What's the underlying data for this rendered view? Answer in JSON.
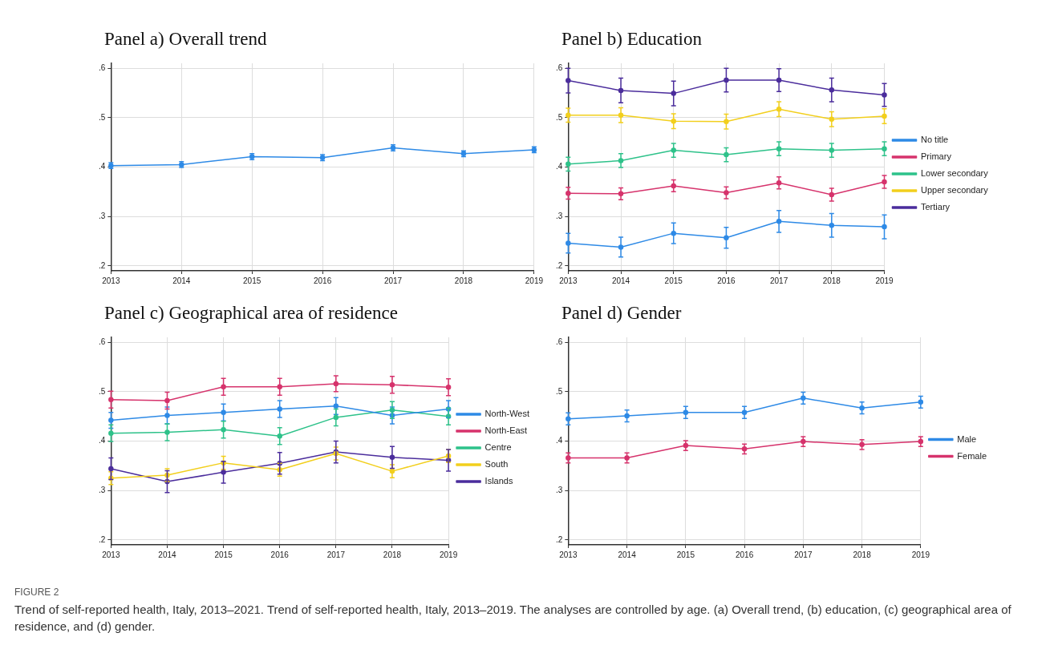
{
  "chart_data": [
    {
      "type": "line",
      "title": "Panel a) Overall trend",
      "categories": [
        "2013",
        "2014",
        "2015",
        "2016",
        "2017",
        "2018",
        "2019"
      ],
      "ylim": [
        0.19,
        0.61
      ],
      "yticks": [
        {
          "value": 0.2,
          "label": ".2"
        },
        {
          "value": 0.3,
          "label": ".3"
        },
        {
          "value": 0.4,
          "label": ".4"
        },
        {
          "value": 0.5,
          "label": ".5"
        },
        {
          "value": 0.6,
          "label": ".6"
        }
      ],
      "grid": true,
      "marker": "circle",
      "line_style": "solid",
      "series": [
        {
          "color": "#2e8ae6",
          "values": [
            0.403,
            0.405,
            0.421,
            0.419,
            0.439,
            0.427,
            0.435
          ],
          "errors": [
            0.006,
            0.006,
            0.006,
            0.006,
            0.006,
            0.006,
            0.006
          ]
        }
      ]
    },
    {
      "type": "line",
      "title": "Panel b) Education",
      "categories": [
        "2013",
        "2014",
        "2015",
        "2016",
        "2017",
        "2018",
        "2019"
      ],
      "ylim": [
        0.19,
        0.61
      ],
      "yticks": [
        {
          "value": 0.2,
          "label": ".2"
        },
        {
          "value": 0.3,
          "label": ".3"
        },
        {
          "value": 0.4,
          "label": ".4"
        },
        {
          "value": 0.5,
          "label": ".5"
        },
        {
          "value": 0.6,
          "label": ".6"
        }
      ],
      "grid": true,
      "marker": "circle",
      "line_style": "solid",
      "legend": "right",
      "series": [
        {
          "name": "No title",
          "color": "#2e8ae6",
          "values": [
            0.246,
            0.238,
            0.266,
            0.257,
            0.29,
            0.282,
            0.279
          ],
          "errors": [
            0.02,
            0.02,
            0.021,
            0.021,
            0.022,
            0.024,
            0.024
          ]
        },
        {
          "name": "Primary",
          "color": "#d6336c",
          "values": [
            0.347,
            0.346,
            0.362,
            0.348,
            0.368,
            0.344,
            0.37
          ],
          "errors": [
            0.012,
            0.012,
            0.012,
            0.012,
            0.012,
            0.013,
            0.013
          ]
        },
        {
          "name": "Lower secondary",
          "color": "#2ec28a",
          "values": [
            0.406,
            0.413,
            0.434,
            0.425,
            0.437,
            0.434,
            0.437
          ],
          "errors": [
            0.014,
            0.014,
            0.014,
            0.014,
            0.014,
            0.014,
            0.014
          ]
        },
        {
          "name": "Upper secondary",
          "color": "#f2cf1d",
          "values": [
            0.505,
            0.505,
            0.493,
            0.492,
            0.517,
            0.497,
            0.503
          ],
          "errors": [
            0.014,
            0.015,
            0.015,
            0.015,
            0.015,
            0.015,
            0.015
          ]
        },
        {
          "name": "Tertiary",
          "color": "#4b2d9c",
          "values": [
            0.575,
            0.555,
            0.549,
            0.576,
            0.576,
            0.556,
            0.546
          ],
          "errors": [
            0.025,
            0.025,
            0.025,
            0.024,
            0.023,
            0.024,
            0.023
          ]
        }
      ]
    },
    {
      "type": "line",
      "title": "Panel c) Geographical area of residence",
      "categories": [
        "2013",
        "2014",
        "2015",
        "2016",
        "2017",
        "2018",
        "2019"
      ],
      "ylim": [
        0.19,
        0.61
      ],
      "yticks": [
        {
          "value": 0.2,
          "label": ".2"
        },
        {
          "value": 0.3,
          "label": ".3"
        },
        {
          "value": 0.4,
          "label": ".4"
        },
        {
          "value": 0.5,
          "label": ".5"
        },
        {
          "value": 0.6,
          "label": ".6"
        }
      ],
      "grid": true,
      "marker": "circle",
      "line_style": "solid",
      "legend": "right",
      "series": [
        {
          "name": "North-West",
          "color": "#2e8ae6",
          "values": [
            0.442,
            0.452,
            0.458,
            0.465,
            0.471,
            0.452,
            0.465
          ],
          "errors": [
            0.016,
            0.017,
            0.017,
            0.017,
            0.017,
            0.017,
            0.017
          ]
        },
        {
          "name": "North-East",
          "color": "#d6336c",
          "values": [
            0.484,
            0.482,
            0.51,
            0.51,
            0.516,
            0.514,
            0.509
          ],
          "errors": [
            0.017,
            0.017,
            0.017,
            0.017,
            0.016,
            0.017,
            0.017
          ]
        },
        {
          "name": "Centre",
          "color": "#2ec28a",
          "values": [
            0.416,
            0.418,
            0.423,
            0.41,
            0.448,
            0.463,
            0.45
          ],
          "errors": [
            0.017,
            0.017,
            0.017,
            0.017,
            0.017,
            0.017,
            0.017
          ]
        },
        {
          "name": "South",
          "color": "#f2cf1d",
          "values": [
            0.325,
            0.331,
            0.356,
            0.342,
            0.375,
            0.339,
            0.37
          ],
          "errors": [
            0.013,
            0.013,
            0.013,
            0.013,
            0.013,
            0.013,
            0.013
          ]
        },
        {
          "name": "Islands",
          "color": "#4b2d9c",
          "values": [
            0.344,
            0.318,
            0.337,
            0.355,
            0.378,
            0.367,
            0.361
          ],
          "errors": [
            0.022,
            0.022,
            0.022,
            0.022,
            0.022,
            0.022,
            0.022
          ]
        }
      ]
    },
    {
      "type": "line",
      "title": "Panel d) Gender",
      "categories": [
        "2013",
        "2014",
        "2015",
        "2016",
        "2017",
        "2018",
        "2019"
      ],
      "ylim": [
        0.19,
        0.61
      ],
      "yticks": [
        {
          "value": 0.2,
          "label": ".2"
        },
        {
          "value": 0.3,
          "label": ".3"
        },
        {
          "value": 0.4,
          "label": ".4"
        },
        {
          "value": 0.5,
          "label": ".5"
        },
        {
          "value": 0.6,
          "label": ".6"
        }
      ],
      "grid": true,
      "marker": "circle",
      "line_style": "solid",
      "legend": "right",
      "annotations": [
        "FIGURE 2",
        "Trend of self-reported health, Italy, 2013–2021. Trend of self-reported health, Italy, 2013–2019. The analyses are controlled by age. (a) Overall trend, (b) education, (c) geographical area of residence, and (d) gender."
      ],
      "series": [
        {
          "name": "Male",
          "color": "#2e8ae6",
          "values": [
            0.445,
            0.451,
            0.458,
            0.458,
            0.487,
            0.467,
            0.479
          ],
          "errors": [
            0.012,
            0.012,
            0.012,
            0.012,
            0.012,
            0.012,
            0.012
          ]
        },
        {
          "name": "Female",
          "color": "#d6336c",
          "values": [
            0.366,
            0.366,
            0.391,
            0.384,
            0.399,
            0.393,
            0.399
          ],
          "errors": [
            0.01,
            0.01,
            0.01,
            0.01,
            0.01,
            0.01,
            0.01
          ]
        }
      ]
    }
  ]
}
